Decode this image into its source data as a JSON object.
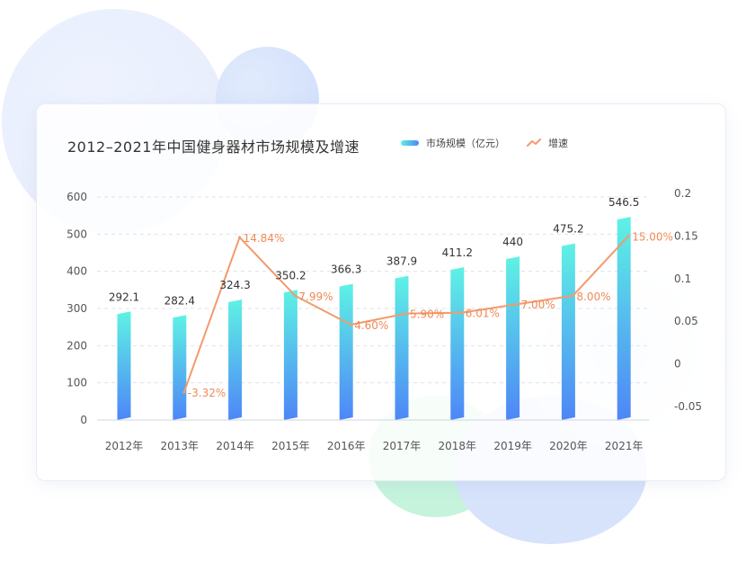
{
  "chart_data": {
    "type": "bar",
    "title": "2012–2021年中国健身器材市场规模及增速",
    "categories": [
      "2012年",
      "2013年",
      "2014年",
      "2015年",
      "2016年",
      "2017年",
      "2018年",
      "2019年",
      "2020年",
      "2021年"
    ],
    "series": [
      {
        "name": "市场规模（亿元）",
        "type": "bar",
        "axis": "left",
        "values": [
          292.1,
          282.4,
          324.3,
          350.2,
          366.3,
          387.9,
          411.2,
          440,
          475.2,
          546.5
        ],
        "labels": [
          "292.1",
          "282.4",
          "324.3",
          "350.2",
          "366.3",
          "387.9",
          "411.2",
          "440",
          "475.2",
          "546.5"
        ]
      },
      {
        "name": "增速",
        "type": "line",
        "axis": "right",
        "values": [
          null,
          -0.0332,
          0.1484,
          0.0799,
          0.046,
          0.059,
          0.0601,
          0.07,
          0.08,
          0.15
        ],
        "labels": [
          null,
          "-3.32%",
          "14.84%",
          "7.99%",
          "4.60%",
          "5.90%",
          "6.01%",
          "7.00%",
          "8.00%",
          "15.00%"
        ]
      }
    ],
    "ylim": [
      0,
      600
    ],
    "yticks": [
      "0",
      "100",
      "200",
      "300",
      "400",
      "500",
      "600"
    ],
    "y2lim": [
      -0.05,
      0.2
    ],
    "y2ticks": [
      "-0.05",
      "0",
      "0.05",
      "0.1",
      "0.15",
      "0.2"
    ],
    "grid": true,
    "legend": "top-right",
    "colors": {
      "bar_top": "#5ef2e4",
      "bar_bottom": "#4e86f7",
      "line": "#f39a6d",
      "line_label": "#f08a55",
      "bar_label": "#333333",
      "axis_text": "#555555",
      "grid": "#dde3ec"
    }
  }
}
